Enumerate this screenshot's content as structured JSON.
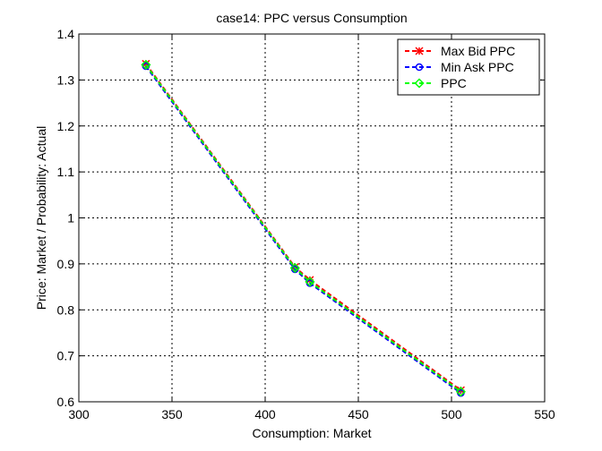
{
  "chart_data": {
    "type": "line",
    "title": "case14: PPC versus Consumption",
    "xlabel": "Consumption: Market",
    "ylabel": "Price: Market / Probability: Actual",
    "xlim": [
      300,
      550
    ],
    "ylim": [
      0.6,
      1.4
    ],
    "xticks": [
      "300",
      "350",
      "400",
      "450",
      "500",
      "550"
    ],
    "yticks": [
      "0.6",
      "0.7",
      "0.8",
      "0.9",
      "1",
      "1.1",
      "1.2",
      "1.3",
      "1.4"
    ],
    "grid": true,
    "legend_position": "top-right",
    "series": [
      {
        "name": "Max Bid PPC",
        "color": "#ff0000",
        "marker": "star",
        "x": [
          336,
          416,
          424,
          505
        ],
        "y": [
          1.335,
          0.893,
          0.865,
          0.625
        ]
      },
      {
        "name": "Min Ask PPC",
        "color": "#0000ff",
        "marker": "circle",
        "x": [
          336,
          416,
          424,
          505
        ],
        "y": [
          1.33,
          0.888,
          0.858,
          0.619
        ]
      },
      {
        "name": "PPC",
        "color": "#00ff00",
        "marker": "diamond",
        "x": [
          336,
          416,
          424,
          505
        ],
        "y": [
          1.333,
          0.891,
          0.861,
          0.622
        ]
      }
    ]
  }
}
